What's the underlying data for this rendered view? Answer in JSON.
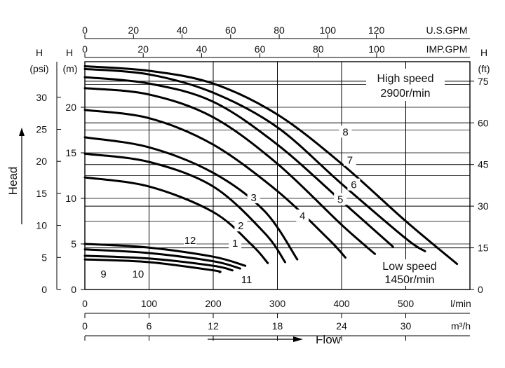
{
  "chart_data": {
    "type": "line",
    "top_axes": [
      {
        "unit": "U.S.GPM",
        "ticks": [
          "0",
          "20",
          "40",
          "60",
          "80",
          "100",
          "120"
        ],
        "values": [
          0,
          20,
          40,
          60,
          80,
          100,
          120
        ]
      },
      {
        "unit": "IMP.GPM",
        "ticks": [
          "0",
          "20",
          "40",
          "60",
          "80",
          "100"
        ],
        "values": [
          0,
          20,
          40,
          60,
          80,
          100
        ]
      }
    ],
    "bottom_axes": [
      {
        "unit": "l/min",
        "ticks": [
          "0",
          "100",
          "200",
          "300",
          "400",
          "500"
        ],
        "values": [
          0,
          100,
          200,
          300,
          400,
          500
        ]
      },
      {
        "unit": "m³/h",
        "ticks": [
          "0",
          "6",
          "12",
          "18",
          "24",
          "30"
        ],
        "values": [
          0,
          6,
          12,
          18,
          24,
          30
        ]
      }
    ],
    "left_axes": [
      {
        "label": "H",
        "unit": "(psi)",
        "ticks": [
          "0",
          "5",
          "10",
          "15",
          "20",
          "25",
          "30"
        ],
        "values": [
          0,
          5,
          10,
          15,
          20,
          25,
          30
        ]
      },
      {
        "label": "H",
        "unit": "(m)",
        "ticks": [
          "0",
          "5",
          "10",
          "15",
          "20"
        ],
        "values": [
          0,
          5,
          10,
          15,
          20
        ]
      }
    ],
    "right_axis": {
      "label": "H",
      "unit": "(ft)",
      "ticks": [
        "0",
        "15",
        "30",
        "45",
        "60",
        "75"
      ],
      "values": [
        0,
        15,
        30,
        45,
        60,
        75
      ]
    },
    "ylabel": "Head",
    "xlabel": "Flow",
    "xlim": [
      0,
      600
    ],
    "ylim": [
      0,
      24.5
    ],
    "grid": true,
    "annotations": [
      {
        "text": "High speed",
        "position": "top-right"
      },
      {
        "text": "2900r/min",
        "position": "top-right"
      },
      {
        "text": "Low speed",
        "position": "bottom-right"
      },
      {
        "text": "1450r/min",
        "position": "bottom-right"
      }
    ],
    "series": [
      {
        "name": "1",
        "points": [
          [
            0,
            12.3
          ],
          [
            100,
            11.3
          ],
          [
            200,
            8.5
          ],
          [
            260,
            4.9
          ],
          [
            285,
            2.9
          ]
        ]
      },
      {
        "name": "2",
        "points": [
          [
            0,
            14.9
          ],
          [
            100,
            14.0
          ],
          [
            200,
            11.3
          ],
          [
            280,
            6.2
          ],
          [
            312,
            3.0
          ]
        ]
      },
      {
        "name": "3",
        "points": [
          [
            0,
            16.7
          ],
          [
            100,
            15.6
          ],
          [
            200,
            12.8
          ],
          [
            280,
            8.6
          ],
          [
            331,
            3.3
          ]
        ]
      },
      {
        "name": "4",
        "points": [
          [
            0,
            19.7
          ],
          [
            100,
            18.8
          ],
          [
            200,
            15.9
          ],
          [
            300,
            10.8
          ],
          [
            380,
            5.5
          ],
          [
            406,
            3.5
          ]
        ]
      },
      {
        "name": "5",
        "points": [
          [
            0,
            22.1
          ],
          [
            100,
            21.4
          ],
          [
            200,
            18.9
          ],
          [
            300,
            13.8
          ],
          [
            400,
            7.1
          ],
          [
            452,
            3.9
          ]
        ]
      },
      {
        "name": "6",
        "points": [
          [
            0,
            23.3
          ],
          [
            100,
            22.6
          ],
          [
            200,
            20.6
          ],
          [
            300,
            15.9
          ],
          [
            400,
            9.7
          ],
          [
            480,
            4.7
          ]
        ]
      },
      {
        "name": "7",
        "points": [
          [
            0,
            24.2
          ],
          [
            100,
            23.6
          ],
          [
            200,
            21.6
          ],
          [
            300,
            17.8
          ],
          [
            400,
            11.6
          ],
          [
            500,
            5.6
          ],
          [
            530,
            4.2
          ]
        ]
      },
      {
        "name": "8",
        "points": [
          [
            0,
            24.5
          ],
          [
            100,
            24.0
          ],
          [
            200,
            22.6
          ],
          [
            300,
            19.2
          ],
          [
            400,
            13.8
          ],
          [
            500,
            7.5
          ],
          [
            580,
            2.8
          ]
        ]
      },
      {
        "name": "9",
        "points": [
          [
            0,
            3.3
          ],
          [
            100,
            3.0
          ],
          [
            200,
            2.1
          ],
          [
            210,
            1.9
          ]
        ]
      },
      {
        "name": "10",
        "points": [
          [
            0,
            3.7
          ],
          [
            100,
            3.4
          ],
          [
            200,
            2.6
          ],
          [
            230,
            2.1
          ]
        ]
      },
      {
        "name": "11",
        "points": [
          [
            0,
            4.4
          ],
          [
            100,
            4.0
          ],
          [
            200,
            3.1
          ],
          [
            242,
            2.3
          ]
        ]
      },
      {
        "name": "12",
        "points": [
          [
            0,
            5.0
          ],
          [
            100,
            4.6
          ],
          [
            200,
            3.6
          ],
          [
            250,
            2.6
          ]
        ]
      }
    ],
    "curve_labels": [
      {
        "text": "1",
        "x": 234,
        "y": 4.7
      },
      {
        "text": "2",
        "x": 243,
        "y": 6.6
      },
      {
        "text": "3",
        "x": 263,
        "y": 9.7
      },
      {
        "text": "4",
        "x": 339,
        "y": 7.7
      },
      {
        "text": "5",
        "x": 398,
        "y": 9.5
      },
      {
        "text": "6",
        "x": 419,
        "y": 11.1
      },
      {
        "text": "7",
        "x": 413,
        "y": 13.8
      },
      {
        "text": "8",
        "x": 406,
        "y": 16.9
      },
      {
        "text": "9",
        "x": 29,
        "y": 1.3
      },
      {
        "text": "10",
        "x": 83,
        "y": 1.3
      },
      {
        "text": "11",
        "x": 252,
        "y": 0.7
      },
      {
        "text": "12",
        "x": 164,
        "y": 5.0
      }
    ]
  }
}
